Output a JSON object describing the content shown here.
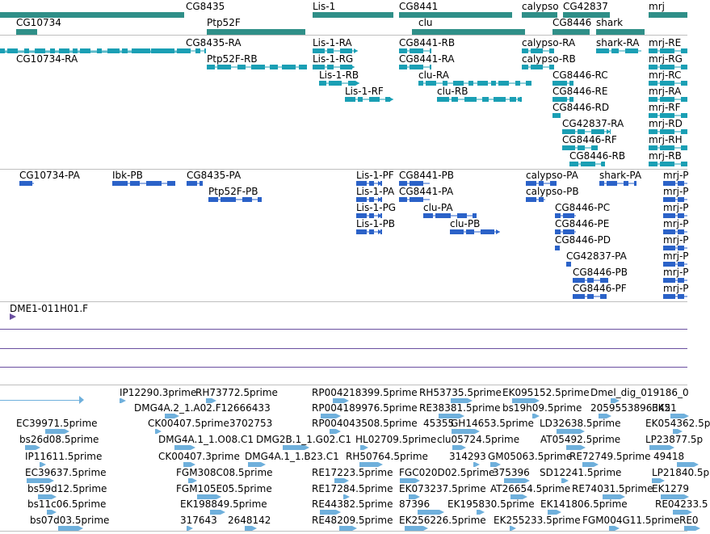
{
  "colors": {
    "gene": "#2f8f88",
    "transcript": "#1a9fb4",
    "protein": "#2b62c8",
    "est": "#6fb0dc",
    "clone": "#6a4fa0",
    "divider": "#bfbfbf"
  },
  "gene_track": {
    "labels": [
      "CG8435",
      "Lis-1",
      "CG8441",
      "calypso",
      "CG42837",
      "mrj",
      "CG10734",
      "Ptp52F",
      "clu",
      "CG8446",
      "shark"
    ]
  },
  "transcript_track": {
    "labels": [
      "CG8435-RA",
      "Lis-1-RA",
      "CG8441-RB",
      "calypso-RA",
      "shark-RA",
      "mrj-RE",
      "CG10734-RA",
      "Ptp52F-RB",
      "Lis-1-RG",
      "CG8441-RA",
      "calypso-RB",
      "mrj-RG",
      "Lis-1-RB",
      "clu-RA",
      "CG8446-RC",
      "mrj-RC",
      "Lis-1-RF",
      "clu-RB",
      "CG8446-RE",
      "mrj-RA",
      "CG8446-RD",
      "mrj-RF",
      "CG42837-RA",
      "mrj-RD",
      "CG8446-RF",
      "mrj-RH",
      "CG8446-RB",
      "mrj-RB"
    ]
  },
  "protein_track": {
    "labels": [
      "CG10734-PA",
      "Ibk-PB",
      "CG8435-PA",
      "Lis-1-PF",
      "CG8441-PB",
      "calypso-PA",
      "shark-PA",
      "mrj-P",
      "Ptp52F-PB",
      "Lis-1-PA",
      "CG8441-PA",
      "calypso-PB",
      "mrj-P",
      "Lis-1-PG",
      "clu-PA",
      "CG8446-PC",
      "mrj-P",
      "Lis-1-PB",
      "clu-PB",
      "CG8446-PE",
      "mrj-P",
      "CG8446-PD",
      "mrj-P",
      "CG42837-PA",
      "mrj-P",
      "CG8446-PB",
      "mrj-P",
      "CG8446-PF",
      "mrj-P"
    ]
  },
  "clone_track": {
    "labels": [
      "DME1-011H01.F"
    ]
  },
  "est_track": {
    "labels": [
      "IP12290.3prime",
      "RH73772.5prime",
      "RP004218399.5prime",
      "RH53735.5prime",
      "EK095152.5prime",
      "Dmel_dig_019186_0",
      "DMG4A.2_1.A02.F12666433",
      "RP004189976.5prime",
      "RE38381.5prime",
      "bs19h09.5prime",
      "2059553896345",
      "EK21",
      "EC39971.5prime",
      "CK00407.5prime3702753",
      "RP004043508.5prime",
      "45355",
      "GH14653.5prime",
      "LD32638.5prime",
      "EK054362.5p",
      "bs26d08.5prime",
      "DMG4A.1_1.O08.C1",
      "DMG2B.1_1.G02.C1",
      "HL02709.5prime",
      "clu05724.5prime",
      "AT05492.5prime",
      "LP23877.5p",
      "IP11611.5prime",
      "CK00407.3prime",
      "DMG4A.1_1.B23.C1",
      "RH50764.5prime",
      "314293",
      "GM05063.5prime",
      "RE72749.5prime",
      "49418",
      "EC39637.5prime",
      "FGM308C08.5prime",
      "RE17223.5prime",
      "FGC020D02.5prime",
      "375396",
      "SD12241.5prime",
      "LP21840.5p",
      "bs59d12.5prime",
      "FGM105E05.5prime",
      "RE17284.5prime",
      "EK073237.5prime",
      "AT26654.5prime",
      "RE74031.5prime",
      "EK1279",
      "bs11c06.5prime",
      "EK198849.5prime",
      "RE44382.5prime",
      "87396",
      "EK195830.5prime",
      "EK141806.5prime",
      "RE04233.5",
      "bs07d03.5prime",
      "317643",
      "2648142",
      "RE48209.5prime",
      "EK256226.5prime",
      "EK255233.5prime",
      "FGM004G11.5prime",
      "RE0"
    ]
  }
}
